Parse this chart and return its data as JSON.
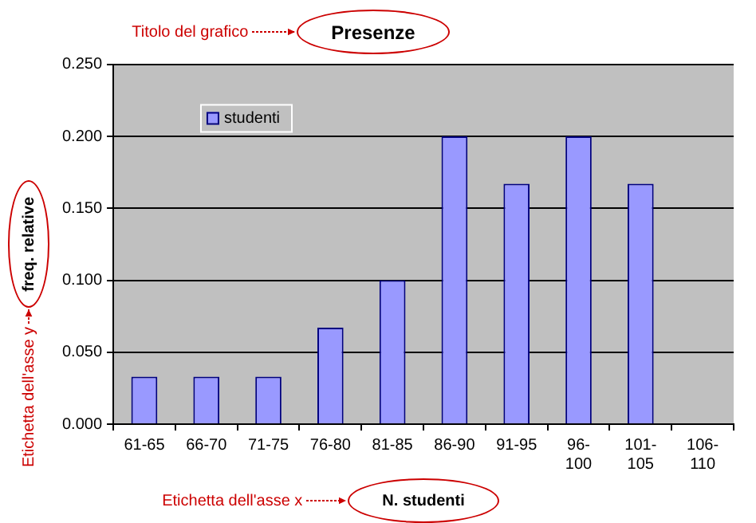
{
  "chart_data": {
    "type": "bar",
    "title": "Presenze",
    "xlabel": "N. studenti",
    "ylabel": "freq. relative",
    "categories": [
      "61-65",
      "66-70",
      "71-75",
      "76-80",
      "81-85",
      "86-90",
      "91-95",
      "96-100",
      "101-105",
      "106-110"
    ],
    "series": [
      {
        "name": "studenti",
        "color": "#9999ff",
        "values": [
          0.033,
          0.033,
          0.033,
          0.067,
          0.1,
          0.2,
          0.167,
          0.2,
          0.167,
          0
        ]
      }
    ],
    "ylim": [
      0,
      0.25
    ],
    "yticks": [
      {
        "value": 0,
        "label": "0.000"
      },
      {
        "value": 0.05,
        "label": "0.050"
      },
      {
        "value": 0.1,
        "label": "0.100"
      },
      {
        "value": 0.15,
        "label": "0.150"
      },
      {
        "value": 0.2,
        "label": "0.200"
      },
      {
        "value": 0.25,
        "label": "0.250"
      }
    ],
    "grid": "y",
    "legend": "top left",
    "annotations": [
      "Titolo del grafico",
      "Etichetta dell'asse y",
      "Etichetta dell'asse x"
    ]
  }
}
